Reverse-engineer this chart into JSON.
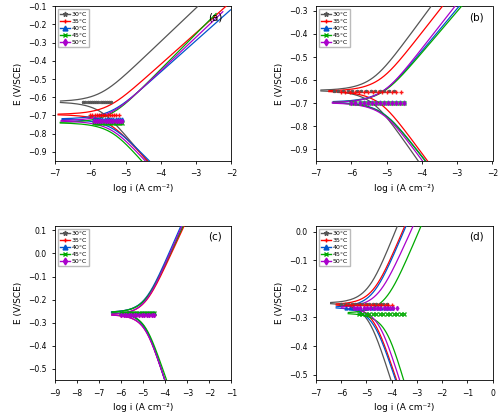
{
  "labels": [
    "30°C",
    "35°C",
    "40°C",
    "45°C",
    "50°C"
  ],
  "color_list": [
    "#555555",
    "#ff0000",
    "#0055cc",
    "#00aa00",
    "#aa00cc"
  ],
  "marker_list": [
    "*",
    "+",
    "^",
    "x",
    "d"
  ],
  "panel_a": {
    "label": "(a)",
    "xlim": [
      -7,
      -2
    ],
    "ylim": [
      -0.95,
      -0.1
    ],
    "xticks": [
      -7,
      -6,
      -5,
      -4,
      -3,
      -2
    ],
    "yticks": [
      -0.9,
      -0.8,
      -0.7,
      -0.6,
      -0.5,
      -0.4,
      -0.3,
      -0.2,
      -0.1
    ],
    "xlabel": "log i (A cm⁻²)",
    "ylabel": "E (V/SCE)",
    "E_corr": [
      -0.625,
      -0.695,
      -0.72,
      -0.74,
      -0.73
    ],
    "log_i0": [
      -5.8,
      -5.6,
      -5.5,
      -5.5,
      -5.5
    ],
    "ba": [
      0.08,
      0.075,
      0.075,
      0.085,
      0.08
    ],
    "bc": [
      0.1,
      0.09,
      0.085,
      0.095,
      0.09
    ],
    "log_i_mark_start": [
      -6.2,
      -6.0,
      -5.9,
      -5.9,
      -5.9
    ],
    "log_i_mark_end": [
      -5.4,
      -5.2,
      -5.1,
      -5.1,
      -5.1
    ]
  },
  "panel_b": {
    "label": "(b)",
    "xlim": [
      -7,
      -2
    ],
    "ylim": [
      -0.95,
      -0.28
    ],
    "xticks": [
      -7,
      -6,
      -5,
      -4,
      -3,
      -2
    ],
    "yticks": [
      -0.9,
      -0.8,
      -0.7,
      -0.6,
      -0.5,
      -0.4,
      -0.3
    ],
    "xlabel": "log i (A cm⁻²)",
    "ylabel": "E (V/SCE)",
    "E_corr": [
      -0.645,
      -0.648,
      -0.695,
      -0.697,
      -0.698
    ],
    "log_i0": [
      -5.5,
      -5.3,
      -5.2,
      -5.2,
      -5.2
    ],
    "ba": [
      0.09,
      0.085,
      0.08,
      0.078,
      0.085
    ],
    "bc": [
      0.095,
      0.09,
      0.085,
      0.085,
      0.09
    ],
    "log_i_mark_start": [
      -6.5,
      -6.3,
      -6.0,
      -6.0,
      -6.0
    ],
    "log_i_mark_end": [
      -4.8,
      -4.6,
      -4.5,
      -4.5,
      -4.5
    ]
  },
  "panel_c": {
    "label": "(c)",
    "xlim": [
      -9,
      -1
    ],
    "ylim": [
      -0.55,
      0.12
    ],
    "xticks": [
      -9,
      -8,
      -7,
      -6,
      -5,
      -4,
      -3,
      -2,
      -1
    ],
    "yticks": [
      -0.5,
      -0.4,
      -0.3,
      -0.2,
      -0.1,
      0.0,
      0.1
    ],
    "xlabel": "log i (A cm⁻²)",
    "ylabel": "E (V/SCE)",
    "E_corr": [
      -0.255,
      -0.265,
      -0.255,
      -0.255,
      -0.265
    ],
    "log_i0": [
      -5.0,
      -5.0,
      -5.0,
      -5.0,
      -5.0
    ],
    "ba": [
      0.09,
      0.09,
      0.095,
      0.09,
      0.095
    ],
    "bc": [
      0.13,
      0.125,
      0.13,
      0.12,
      0.125
    ],
    "log_i_mark_start": [
      -6.0,
      -6.0,
      -6.0,
      -6.0,
      -6.0
    ],
    "log_i_mark_end": [
      -4.5,
      -4.5,
      -4.5,
      -4.5,
      -4.5
    ]
  },
  "panel_d": {
    "label": "(d)",
    "xlim": [
      -7,
      0
    ],
    "ylim": [
      -0.52,
      0.02
    ],
    "xticks": [
      -7,
      -6,
      -5,
      -4,
      -3,
      -2,
      -1,
      0
    ],
    "yticks": [
      -0.5,
      -0.4,
      -0.3,
      -0.2,
      -0.1,
      0.0
    ],
    "xlabel": "log i (A cm⁻²)",
    "ylabel": "E (V/SCE)",
    "E_corr": [
      -0.25,
      -0.255,
      -0.265,
      -0.285,
      -0.265
    ],
    "log_i0": [
      -5.0,
      -4.8,
      -4.8,
      -4.3,
      -4.6
    ],
    "ba": [
      0.095,
      0.09,
      0.09,
      0.09,
      0.085
    ],
    "bc": [
      0.12,
      0.115,
      0.115,
      0.13,
      0.12
    ],
    "log_i_mark_start": [
      -6.0,
      -5.8,
      -5.8,
      -5.3,
      -5.5
    ],
    "log_i_mark_end": [
      -4.2,
      -4.0,
      -4.0,
      -3.5,
      -3.8
    ]
  }
}
